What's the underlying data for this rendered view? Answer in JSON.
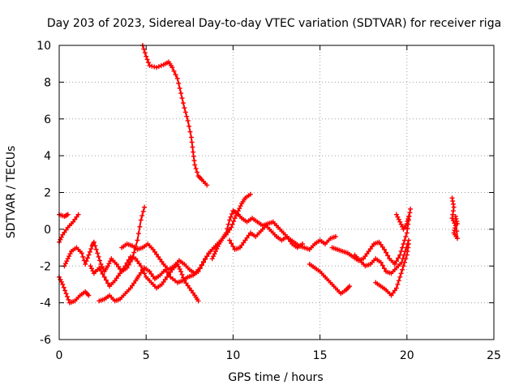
{
  "chart_data": {
    "type": "scatter",
    "title": "Day 203 of 2023, Sidereal Day-to-day VTEC variation (SDTVAR) for receiver riga",
    "xlabel": "GPS time / hours",
    "ylabel": "SDTVAR / TECUs",
    "xlim": [
      0,
      25
    ],
    "ylim": [
      -6,
      10
    ],
    "xticks": [
      "0",
      "5",
      "10",
      "15",
      "20",
      "25"
    ],
    "yticks": [
      "-6",
      "-4",
      "-2",
      "0",
      "2",
      "4",
      "6",
      "8",
      "10"
    ],
    "grid": true,
    "marker": "plus",
    "color": "#ff0000",
    "series": [
      {
        "name": "s1",
        "points": [
          [
            4.8,
            10
          ],
          [
            5.0,
            9.4
          ],
          [
            5.2,
            8.9
          ],
          [
            5.6,
            8.8
          ],
          [
            6.0,
            8.95
          ],
          [
            6.3,
            9.1
          ],
          [
            6.5,
            8.8
          ],
          [
            6.8,
            8.2
          ],
          [
            7.0,
            7.4
          ],
          [
            7.2,
            6.6
          ],
          [
            7.4,
            5.9
          ],
          [
            7.6,
            5.0
          ],
          [
            7.7,
            4.2
          ],
          [
            7.8,
            3.5
          ],
          [
            8.0,
            2.9
          ],
          [
            8.2,
            2.7
          ],
          [
            8.5,
            2.4
          ]
        ]
      },
      {
        "name": "s2",
        "points": [
          [
            0.0,
            0.8
          ],
          [
            0.3,
            0.7
          ],
          [
            0.5,
            0.8
          ]
        ]
      },
      {
        "name": "s3",
        "points": [
          [
            0.0,
            -0.7
          ],
          [
            0.2,
            -0.3
          ],
          [
            0.5,
            0.1
          ],
          [
            0.8,
            0.4
          ],
          [
            1.1,
            0.8
          ]
        ]
      },
      {
        "name": "s4",
        "points": [
          [
            0.0,
            -2.6
          ],
          [
            0.2,
            -3.0
          ],
          [
            0.4,
            -3.5
          ],
          [
            0.6,
            -4.0
          ],
          [
            0.9,
            -3.9
          ],
          [
            1.2,
            -3.6
          ],
          [
            1.5,
            -3.4
          ],
          [
            1.7,
            -3.6
          ]
        ]
      },
      {
        "name": "s5",
        "points": [
          [
            0.3,
            -2.0
          ],
          [
            0.5,
            -1.6
          ],
          [
            0.7,
            -1.2
          ],
          [
            1.0,
            -1.0
          ],
          [
            1.3,
            -1.3
          ],
          [
            1.5,
            -1.9
          ],
          [
            1.7,
            -1.4
          ],
          [
            1.9,
            -0.9
          ],
          [
            2.0,
            -0.7
          ],
          [
            2.2,
            -1.3
          ],
          [
            2.4,
            -1.9
          ],
          [
            2.6,
            -2.3
          ],
          [
            2.8,
            -2.0
          ],
          [
            3.0,
            -1.6
          ],
          [
            3.3,
            -1.9
          ],
          [
            3.6,
            -2.3
          ],
          [
            3.9,
            -2.1
          ],
          [
            4.2,
            -1.6
          ],
          [
            4.5,
            -0.6
          ],
          [
            4.7,
            0.5
          ],
          [
            4.9,
            1.2
          ]
        ]
      },
      {
        "name": "s6",
        "points": [
          [
            1.8,
            -2.0
          ],
          [
            2.0,
            -2.4
          ],
          [
            2.3,
            -2.1
          ],
          [
            2.6,
            -2.6
          ],
          [
            2.9,
            -3.1
          ],
          [
            3.2,
            -2.8
          ],
          [
            3.5,
            -2.4
          ],
          [
            3.8,
            -2.0
          ],
          [
            4.1,
            -1.5
          ],
          [
            4.4,
            -1.6
          ],
          [
            4.7,
            -2.0
          ],
          [
            5.0,
            -2.6
          ],
          [
            5.3,
            -2.9
          ],
          [
            5.6,
            -3.2
          ],
          [
            5.9,
            -3.0
          ],
          [
            6.2,
            -2.6
          ],
          [
            6.5,
            -2.2
          ],
          [
            6.8,
            -1.9
          ],
          [
            7.0,
            -2.3
          ],
          [
            7.2,
            -2.8
          ],
          [
            7.5,
            -3.2
          ],
          [
            7.8,
            -3.6
          ],
          [
            8.0,
            -3.9
          ]
        ]
      },
      {
        "name": "s7",
        "points": [
          [
            2.3,
            -3.9
          ],
          [
            2.6,
            -3.8
          ],
          [
            2.9,
            -3.6
          ],
          [
            3.2,
            -3.9
          ],
          [
            3.5,
            -3.8
          ],
          [
            3.8,
            -3.5
          ],
          [
            4.1,
            -3.2
          ],
          [
            4.4,
            -2.8
          ],
          [
            4.6,
            -2.5
          ],
          [
            4.9,
            -2.1
          ],
          [
            5.2,
            -2.3
          ],
          [
            5.5,
            -2.7
          ],
          [
            5.8,
            -2.5
          ],
          [
            6.1,
            -2.2
          ],
          [
            6.4,
            -2.6
          ],
          [
            6.8,
            -2.9
          ],
          [
            7.1,
            -2.8
          ],
          [
            7.4,
            -2.6
          ],
          [
            7.7,
            -2.5
          ],
          [
            8.0,
            -2.3
          ],
          [
            8.3,
            -1.8
          ],
          [
            8.6,
            -1.3
          ],
          [
            8.9,
            -1.0
          ]
        ]
      },
      {
        "name": "s8",
        "points": [
          [
            3.6,
            -1.0
          ],
          [
            3.9,
            -0.8
          ],
          [
            4.2,
            -0.9
          ],
          [
            4.5,
            -1.1
          ],
          [
            4.8,
            -1.0
          ],
          [
            5.1,
            -0.8
          ],
          [
            5.4,
            -1.1
          ],
          [
            5.7,
            -1.5
          ],
          [
            6.0,
            -1.9
          ],
          [
            6.3,
            -2.2
          ],
          [
            6.6,
            -2.0
          ],
          [
            6.9,
            -1.7
          ],
          [
            7.2,
            -1.9
          ],
          [
            7.5,
            -2.2
          ],
          [
            7.8,
            -2.4
          ],
          [
            8.1,
            -2.1
          ],
          [
            8.4,
            -1.6
          ],
          [
            8.7,
            -1.2
          ],
          [
            9.0,
            -0.9
          ],
          [
            9.3,
            -0.6
          ],
          [
            9.6,
            -0.3
          ],
          [
            9.9,
            0.1
          ],
          [
            10.1,
            0.6
          ],
          [
            10.3,
            1.0
          ],
          [
            10.5,
            1.4
          ],
          [
            10.7,
            1.7
          ],
          [
            11.0,
            1.9
          ]
        ]
      },
      {
        "name": "s9",
        "points": [
          [
            8.8,
            -1.6
          ],
          [
            9.0,
            -1.2
          ],
          [
            9.2,
            -0.8
          ],
          [
            9.4,
            -0.5
          ],
          [
            9.6,
            -0.2
          ],
          [
            9.8,
            0.5
          ],
          [
            10.0,
            1.0
          ],
          [
            10.2,
            0.9
          ],
          [
            10.5,
            0.6
          ],
          [
            10.8,
            0.4
          ],
          [
            11.1,
            0.6
          ],
          [
            11.4,
            0.4
          ],
          [
            11.7,
            0.2
          ],
          [
            12.0,
            0.3
          ],
          [
            12.3,
            0.4
          ],
          [
            12.6,
            0.1
          ],
          [
            12.9,
            -0.2
          ],
          [
            13.2,
            -0.5
          ],
          [
            13.5,
            -0.7
          ],
          [
            13.8,
            -0.9
          ],
          [
            14.1,
            -1.0
          ],
          [
            14.4,
            -1.1
          ],
          [
            14.7,
            -0.8
          ],
          [
            15.0,
            -0.6
          ],
          [
            15.3,
            -0.8
          ],
          [
            15.6,
            -0.5
          ],
          [
            15.9,
            -0.4
          ]
        ]
      },
      {
        "name": "s10",
        "points": [
          [
            9.8,
            -0.6
          ],
          [
            10.1,
            -1.1
          ],
          [
            10.4,
            -1.0
          ],
          [
            10.7,
            -0.6
          ],
          [
            11.0,
            -0.2
          ],
          [
            11.3,
            -0.4
          ],
          [
            11.6,
            -0.1
          ],
          [
            11.9,
            0.2
          ],
          [
            12.2,
            -0.1
          ],
          [
            12.5,
            -0.4
          ],
          [
            12.8,
            -0.6
          ],
          [
            13.1,
            -0.4
          ],
          [
            13.4,
            -0.8
          ],
          [
            13.7,
            -1.0
          ],
          [
            14.0,
            -0.8
          ]
        ]
      },
      {
        "name": "s11",
        "points": [
          [
            14.4,
            -1.9
          ],
          [
            14.7,
            -2.1
          ],
          [
            15.0,
            -2.3
          ],
          [
            15.3,
            -2.6
          ],
          [
            15.6,
            -2.9
          ],
          [
            15.9,
            -3.2
          ],
          [
            16.2,
            -3.5
          ],
          [
            16.5,
            -3.3
          ],
          [
            16.7,
            -3.1
          ]
        ]
      },
      {
        "name": "s12",
        "points": [
          [
            15.7,
            -1.0
          ],
          [
            16.0,
            -1.1
          ],
          [
            16.3,
            -1.2
          ],
          [
            16.6,
            -1.3
          ],
          [
            16.9,
            -1.5
          ],
          [
            17.2,
            -1.7
          ],
          [
            17.5,
            -1.6
          ],
          [
            17.8,
            -1.2
          ],
          [
            18.1,
            -0.8
          ],
          [
            18.4,
            -0.7
          ],
          [
            18.7,
            -1.1
          ],
          [
            19.0,
            -1.6
          ],
          [
            19.3,
            -1.9
          ],
          [
            19.6,
            -1.4
          ],
          [
            19.8,
            -0.8
          ],
          [
            20.0,
            -0.2
          ],
          [
            20.1,
            0.5
          ],
          [
            20.2,
            1.1
          ]
        ]
      },
      {
        "name": "s13",
        "points": [
          [
            17.0,
            -1.4
          ],
          [
            17.3,
            -1.7
          ],
          [
            17.6,
            -2.0
          ],
          [
            17.9,
            -1.9
          ],
          [
            18.2,
            -1.6
          ],
          [
            18.5,
            -1.8
          ],
          [
            18.8,
            -2.3
          ],
          [
            19.1,
            -2.4
          ],
          [
            19.4,
            -2.1
          ],
          [
            19.7,
            -1.8
          ],
          [
            19.9,
            -1.2
          ],
          [
            20.1,
            -0.6
          ]
        ]
      },
      {
        "name": "s14",
        "points": [
          [
            18.2,
            -2.9
          ],
          [
            18.5,
            -3.1
          ],
          [
            18.8,
            -3.3
          ],
          [
            19.1,
            -3.6
          ],
          [
            19.4,
            -3.2
          ],
          [
            19.6,
            -2.6
          ],
          [
            19.8,
            -2.0
          ],
          [
            20.0,
            -1.4
          ],
          [
            20.1,
            -0.8
          ]
        ]
      },
      {
        "name": "s15",
        "points": [
          [
            19.4,
            0.8
          ],
          [
            19.6,
            0.4
          ],
          [
            19.8,
            0.0
          ],
          [
            20.0,
            0.3
          ],
          [
            20.1,
            0.7
          ]
        ]
      },
      {
        "name": "s16",
        "points": [
          [
            22.6,
            1.7
          ],
          [
            22.7,
            1.2
          ],
          [
            22.6,
            0.6
          ],
          [
            22.8,
            0.2
          ],
          [
            22.7,
            -0.2
          ],
          [
            22.9,
            -0.5
          ],
          [
            22.8,
            0.7
          ],
          [
            22.9,
            0.3
          ]
        ]
      }
    ]
  }
}
